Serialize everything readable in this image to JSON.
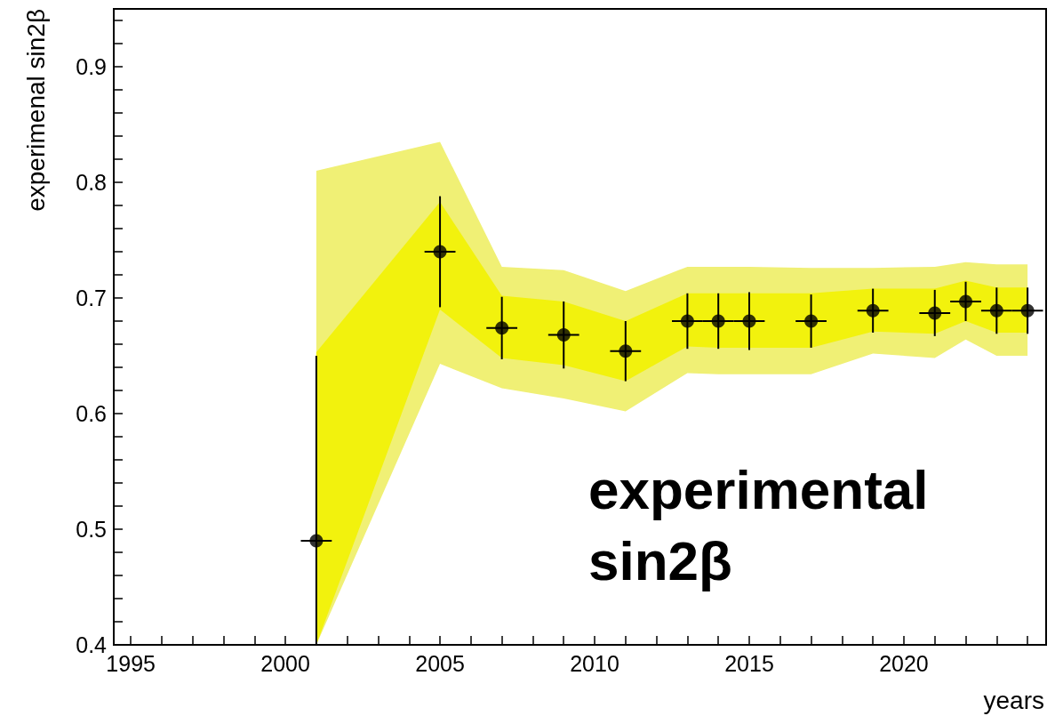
{
  "chart_data": {
    "type": "scatter",
    "xlabel": "years",
    "ylabel": "experimenal sin2β",
    "annotations": [
      "experimental sin2β"
    ],
    "xlim": [
      1994.45,
      2024.6
    ],
    "ylim": [
      0.4,
      0.95
    ],
    "xticks": [
      1995,
      {
        "value": 1996,
        "label": null
      },
      {
        "value": 1997,
        "label": null
      },
      {
        "value": 1998,
        "label": null
      },
      {
        "value": 1999,
        "label": null
      },
      2000,
      {
        "value": 2001,
        "label": null
      },
      {
        "value": 2002,
        "label": null
      },
      {
        "value": 2003,
        "label": null
      },
      {
        "value": 2004,
        "label": null
      },
      2005,
      {
        "value": 2006,
        "label": null
      },
      {
        "value": 2007,
        "label": null
      },
      {
        "value": 2008,
        "label": null
      },
      {
        "value": 2009,
        "label": null
      },
      2010,
      {
        "value": 2011,
        "label": null
      },
      {
        "value": 2012,
        "label": null
      },
      {
        "value": 2013,
        "label": null
      },
      {
        "value": 2014,
        "label": null
      },
      2015,
      {
        "value": 2016,
        "label": null
      },
      {
        "value": 2017,
        "label": null
      },
      {
        "value": 2018,
        "label": null
      },
      {
        "value": 2019,
        "label": null
      },
      2020,
      {
        "value": 2021,
        "label": null
      },
      {
        "value": 2022,
        "label": null
      },
      {
        "value": 2023,
        "label": null
      },
      {
        "value": 2024,
        "label": null
      }
    ],
    "yticks": [
      0.4,
      {
        "value": 0.42,
        "label": null
      },
      {
        "value": 0.44,
        "label": null
      },
      {
        "value": 0.46,
        "label": null
      },
      {
        "value": 0.48,
        "label": null
      },
      0.5,
      {
        "value": 0.52,
        "label": null
      },
      {
        "value": 0.54,
        "label": null
      },
      {
        "value": 0.56,
        "label": null
      },
      {
        "value": 0.58,
        "label": null
      },
      0.6,
      {
        "value": 0.62,
        "label": null
      },
      {
        "value": 0.64,
        "label": null
      },
      {
        "value": 0.66,
        "label": null
      },
      {
        "value": 0.68,
        "label": null
      },
      0.7,
      {
        "value": 0.72,
        "label": null
      },
      {
        "value": 0.74,
        "label": null
      },
      {
        "value": 0.76,
        "label": null
      },
      {
        "value": 0.78,
        "label": null
      },
      0.8,
      {
        "value": 0.82,
        "label": null
      },
      {
        "value": 0.84,
        "label": null
      },
      {
        "value": 0.86,
        "label": null
      },
      {
        "value": 0.88,
        "label": null
      },
      0.9,
      {
        "value": 0.92,
        "label": null
      },
      {
        "value": 0.94,
        "label": null
      }
    ],
    "grid": false,
    "marker": "circle",
    "series": [
      {
        "marker": "none",
        "color": "#f0f075",
        "x": [
          2001,
          2005,
          2007,
          2009,
          2011,
          2013,
          2014,
          2015,
          2017,
          2019,
          2021,
          2022,
          2023,
          2024
        ],
        "values": [
          null,
          null,
          null,
          null,
          null,
          null,
          null,
          null,
          null,
          null,
          null,
          null,
          null,
          null
        ],
        "lower": [
          0.4,
          0.643,
          0.622,
          0.613,
          0.602,
          0.635,
          0.634,
          0.634,
          0.634,
          0.652,
          0.648,
          0.664,
          0.65,
          0.65
        ],
        "upper": [
          0.81,
          0.835,
          0.727,
          0.724,
          0.706,
          0.727,
          0.727,
          0.727,
          0.726,
          0.726,
          0.727,
          0.731,
          0.729,
          0.729
        ]
      },
      {
        "color": "#000000",
        "x": [
          2001,
          2005,
          2007,
          2009,
          2011,
          2013,
          2014,
          2015,
          2017,
          2019,
          2021,
          2022,
          2023,
          2024
        ],
        "values": [
          0.49,
          0.74,
          0.674,
          0.668,
          0.654,
          0.68,
          0.68,
          0.68,
          0.68,
          0.689,
          0.687,
          0.697,
          0.689,
          0.689
        ],
        "errors": [
          [
            0.4,
            0.65
          ],
          0.048,
          0.027,
          0.029,
          0.026,
          0.024,
          0.024,
          0.025,
          0.023,
          0.019,
          0.02,
          0.017,
          0.02,
          0.02
        ],
        "xerrors": [
          0.5,
          0.5,
          0.5,
          0.5,
          0.5,
          0.5,
          0.5,
          0.5,
          0.5,
          0.5,
          0.5,
          0.5,
          0.5,
          0.5
        ],
        "lower": [
          0.4,
          0.69,
          0.648,
          0.642,
          0.628,
          0.658,
          0.657,
          0.657,
          0.657,
          0.671,
          0.669,
          0.68,
          0.67,
          0.67
        ],
        "upper": [
          0.653,
          0.783,
          0.702,
          0.697,
          0.68,
          0.704,
          0.704,
          0.704,
          0.704,
          0.708,
          0.708,
          0.715,
          0.709,
          0.709
        ]
      }
    ]
  }
}
